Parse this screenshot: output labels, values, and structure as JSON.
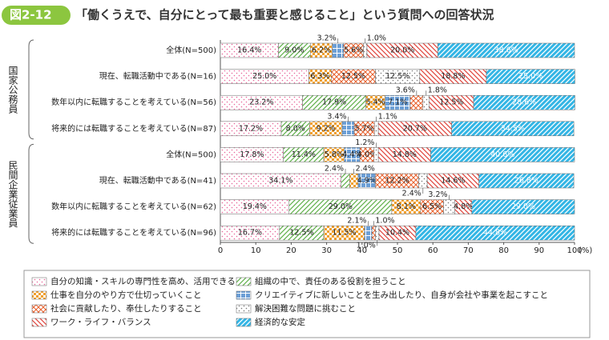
{
  "chart_data": {
    "type": "stacked-bar-horizontal",
    "figure_label": "図2-12",
    "title": "「働くうえで、自分にとって最も重要と感じること」という質問への回答状況",
    "groups": [
      "国家公務員",
      "民間企業従業員"
    ],
    "categories": [
      "全体(N=500)",
      "現在、転職活動中である(N=16)",
      "数年以内に転職することを考えている(N=56)",
      "将来的には転職することを考えている(N=87)",
      "全体(N=500)",
      "現在、転職活動中である(N=41)",
      "数年以内に転職することを考えている(N=62)",
      "将来的には転職することを考えている(N=96)"
    ],
    "xlim": [
      0,
      100
    ],
    "xticks": [
      0,
      10,
      20,
      30,
      40,
      50,
      60,
      70,
      80,
      90,
      100
    ],
    "xlabel": "(%)",
    "series": [
      {
        "name": "自分の知識・スキルの専門性を高め、活用できること",
        "color": "#e8669a",
        "values": [
          16.4,
          25.0,
          23.2,
          17.2,
          17.8,
          34.1,
          19.4,
          16.7
        ],
        "value_labels": [
          "16.4%",
          "25.0%",
          "23.2%",
          "17.2%",
          "17.8%",
          "34.1%",
          "19.4%",
          "16.7%"
        ]
      },
      {
        "name": "組織の中で、責任のある役割を担うこと",
        "color": "#5fb04a",
        "values": [
          9.0,
          0,
          17.9,
          8.0,
          11.4,
          2.4,
          29.0,
          12.5
        ],
        "value_labels": [
          "9.0%",
          null,
          "17.9%",
          "8.0%",
          "11.4%",
          "2.4%",
          "29.0%",
          "12.5%"
        ]
      },
      {
        "name": "仕事を自分のやり方で仕切っていくこと",
        "color": "#f0a030",
        "values": [
          6.2,
          6.3,
          5.4,
          9.2,
          5.8,
          2.4,
          8.1,
          11.5
        ],
        "value_labels": [
          "6.2%",
          "6.3%",
          "5.4%",
          "9.2%",
          "5.8%",
          "2.4%",
          "8.1%",
          "11.5%"
        ]
      },
      {
        "name": "クリエイティブに新しいことを生み出したり、自身が会社や事業を起こすこと",
        "color": "#3a7fc8",
        "values": [
          3.2,
          0,
          7.1,
          3.4,
          4.4,
          4.9,
          0,
          2.1
        ],
        "value_labels": [
          "3.2%",
          null,
          "7.1%",
          "3.4%",
          "4.4%",
          "4.9%",
          null,
          "2.1%"
        ]
      },
      {
        "name": "社会に貢献したり、奉仕したりすること",
        "color": "#e8602c",
        "values": [
          5.6,
          12.5,
          3.6,
          5.7,
          4.0,
          12.2,
          6.5,
          1.0
        ],
        "value_labels": [
          "5.6%",
          "12.5%",
          "3.6%",
          "5.7%",
          "4.0%",
          "12.2%",
          "6.5%",
          "1.0%"
        ]
      },
      {
        "name": "解決困難な問題に挑むこと",
        "color": "#777777",
        "values": [
          1.0,
          12.5,
          1.8,
          1.1,
          1.2,
          2.4,
          3.2,
          1.0
        ],
        "value_labels": [
          "1.0%",
          "12.5%",
          "1.8%",
          "1.1%",
          "1.2%",
          "2.4%",
          "3.2%",
          "1.0%"
        ]
      },
      {
        "name": "ワーク・ライフ・バランス",
        "color": "#e0443c",
        "values": [
          20.0,
          18.8,
          12.5,
          20.7,
          14.8,
          14.6,
          4.8,
          10.4
        ],
        "value_labels": [
          "20.0%",
          "18.8%",
          "12.5%",
          "20.7%",
          "14.8%",
          "14.6%",
          "4.8%",
          "10.4%"
        ]
      },
      {
        "name": "経済的な安定",
        "color": "#33b5e5",
        "values": [
          38.6,
          25.0,
          28.6,
          34.5,
          40.6,
          26.8,
          29.0,
          44.8
        ],
        "value_labels": [
          "38.6%",
          "25.0%",
          "28.6%",
          "34.5%",
          "40.6%",
          "26.8%",
          "29.0%",
          "44.8%"
        ]
      }
    ]
  }
}
